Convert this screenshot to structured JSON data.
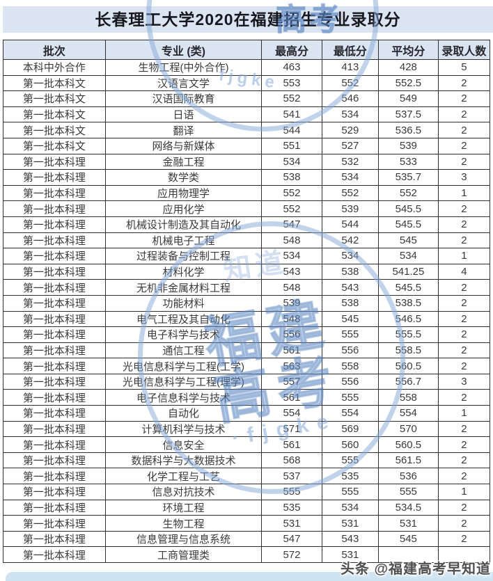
{
  "title": "长春理工大学2020在福建招生专业录取分",
  "table": {
    "columns": [
      "批次",
      "专业 (类)",
      "最高分",
      "最低分",
      "平均分",
      "录取人数"
    ],
    "rows": [
      [
        "本科中外合作",
        "生物工程(中外合作)",
        "463",
        "413",
        "428",
        "5"
      ],
      [
        "第一批本科文",
        "汉语言文学",
        "553",
        "552",
        "552.5",
        "2"
      ],
      [
        "第一批本科文",
        "汉语国际教育",
        "552",
        "546",
        "549",
        "2"
      ],
      [
        "第一批本科文",
        "日语",
        "541",
        "534",
        "537.5",
        "2"
      ],
      [
        "第一批本科文",
        "翻译",
        "544",
        "529",
        "536.5",
        "2"
      ],
      [
        "第一批本科文",
        "网络与新媒体",
        "551",
        "527",
        "539",
        "2"
      ],
      [
        "第一批本科理",
        "金融工程",
        "534",
        "532",
        "533",
        "2"
      ],
      [
        "第一批本科理",
        "数学类",
        "538",
        "534",
        "535.7",
        "3"
      ],
      [
        "第一批本科理",
        "应用物理学",
        "552",
        "552",
        "552",
        "1"
      ],
      [
        "第一批本科理",
        "应用化学",
        "552",
        "539",
        "545.5",
        "2"
      ],
      [
        "第一批本科理",
        "机械设计制造及其自动化",
        "547",
        "544",
        "545.5",
        "2"
      ],
      [
        "第一批本科理",
        "机械电子工程",
        "548",
        "542",
        "545",
        "2"
      ],
      [
        "第一批本科理",
        "过程装备与控制工程",
        "534",
        "534",
        "534",
        "1"
      ],
      [
        "第一批本科理",
        "材料化学",
        "543",
        "538",
        "541.25",
        "4"
      ],
      [
        "第一批本科理",
        "无机非金属材料工程",
        "548",
        "543",
        "545.5",
        "2"
      ],
      [
        "第一批本科理",
        "功能材料",
        "539",
        "538",
        "538.5",
        "2"
      ],
      [
        "第一批本科理",
        "电气工程及其自动化",
        "548",
        "545",
        "546.5",
        "2"
      ],
      [
        "第一批本科理",
        "电子科学与技术",
        "556",
        "555",
        "555.5",
        "2"
      ],
      [
        "第一批本科理",
        "通信工程",
        "561",
        "556",
        "558.5",
        "2"
      ],
      [
        "第一批本科理",
        "光电信息科学与工程(工学)",
        "563",
        "558",
        "560.5",
        "2"
      ],
      [
        "第一批本科理",
        "光电信息科学与工程(理学)",
        "557",
        "556",
        "556.7",
        "3"
      ],
      [
        "第一批本科理",
        "电子信息科学与技术",
        "561",
        "555",
        "558",
        "2"
      ],
      [
        "第一批本科理",
        "自动化",
        "554",
        "554",
        "554",
        "1"
      ],
      [
        "第一批本科理",
        "计算机科学与技术",
        "571",
        "569",
        "570",
        "2"
      ],
      [
        "第一批本科理",
        "信息安全",
        "561",
        "560",
        "560.5",
        "2"
      ],
      [
        "第一批本科理",
        "数据科学与大数据技术",
        "568",
        "555",
        "561.5",
        "2"
      ],
      [
        "第一批本科理",
        "化学工程与工艺",
        "537",
        "535",
        "536",
        "2"
      ],
      [
        "第一批本科理",
        "信息对抗技术",
        "555",
        "555",
        "555",
        "1"
      ],
      [
        "第一批本科理",
        "环境工程",
        "535",
        "534",
        "534.5",
        "2"
      ],
      [
        "第一批本科理",
        "生物工程",
        "531",
        "531",
        "531",
        "2"
      ],
      [
        "第一批本科理",
        "信息管理与信息系统",
        "547",
        "543",
        "545",
        "2"
      ],
      [
        "第一批本科理",
        "工商管理类",
        "572",
        "531",
        "",
        ""
      ]
    ]
  },
  "watermarks": {
    "stamp_top_chars": "高考",
    "stamp_top_arc": "fjgke",
    "stamp_main_line1": "福建",
    "stamp_main_line2": "高考",
    "stamp_main_arc": "·fjgke",
    "stamp_side_chars": "知道",
    "credit": "头条 @福建高考早知道"
  },
  "colors": {
    "header_bg": "#dbe5f1",
    "table_border": "#2e2e2e",
    "watermark_blue": "#7ba3d6",
    "bottom_strip_bg": "#cfe4f2",
    "credit_text": "#4f4f4f"
  }
}
